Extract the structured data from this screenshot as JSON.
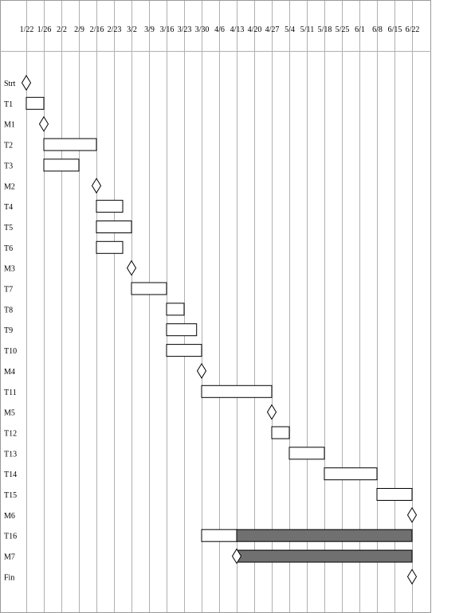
{
  "chart_data": {
    "type": "gantt",
    "title": "",
    "xlabel": "",
    "ylabel": "",
    "x_ticks": [
      "1/22",
      "1/26",
      "2/2",
      "2/9",
      "2/16",
      "2/23",
      "3/2",
      "3/9",
      "3/16",
      "3/23",
      "3/30",
      "4/6",
      "4/13",
      "4/20",
      "4/27",
      "5/4",
      "5/11",
      "5/18",
      "5/25",
      "6/1",
      "6/8",
      "6/15",
      "6/22"
    ],
    "grid": true,
    "rows": [
      {
        "label": "Strt",
        "kind": "milestone",
        "at": "1/22"
      },
      {
        "label": "T1",
        "kind": "task",
        "start": "1/22",
        "end": "1/26"
      },
      {
        "label": "M1",
        "kind": "milestone",
        "at": "1/26"
      },
      {
        "label": "T2",
        "kind": "task",
        "start": "1/26",
        "end": "2/16"
      },
      {
        "label": "T3",
        "kind": "task",
        "start": "1/26",
        "end": "2/9"
      },
      {
        "label": "M2",
        "kind": "milestone",
        "at": "2/16"
      },
      {
        "label": "T4",
        "kind": "task",
        "start": "2/16",
        "end": "2/27"
      },
      {
        "label": "T5",
        "kind": "task",
        "start": "2/16",
        "end": "3/2"
      },
      {
        "label": "T6",
        "kind": "task",
        "start": "2/16",
        "end": "2/27"
      },
      {
        "label": "M3",
        "kind": "milestone",
        "at": "3/2"
      },
      {
        "label": "T7",
        "kind": "task",
        "start": "3/2",
        "end": "3/16"
      },
      {
        "label": "T8",
        "kind": "task",
        "start": "3/16",
        "end": "3/23"
      },
      {
        "label": "T9",
        "kind": "task",
        "start": "3/16",
        "end": "3/28"
      },
      {
        "label": "T10",
        "kind": "task",
        "start": "3/16",
        "end": "3/30"
      },
      {
        "label": "M4",
        "kind": "milestone",
        "at": "3/30"
      },
      {
        "label": "T11",
        "kind": "task",
        "start": "3/30",
        "end": "4/27"
      },
      {
        "label": "M5",
        "kind": "milestone",
        "at": "4/27"
      },
      {
        "label": "T12",
        "kind": "task",
        "start": "4/27",
        "end": "5/4"
      },
      {
        "label": "T13",
        "kind": "task",
        "start": "5/4",
        "end": "5/18"
      },
      {
        "label": "T14",
        "kind": "task",
        "start": "5/18",
        "end": "6/8"
      },
      {
        "label": "T15",
        "kind": "task",
        "start": "6/8",
        "end": "6/22"
      },
      {
        "label": "M6",
        "kind": "milestone",
        "at": "6/22"
      },
      {
        "label": "T16",
        "kind": "task",
        "start": "3/30",
        "end": "4/13",
        "slack_end": "6/22"
      },
      {
        "label": "M7",
        "kind": "milestone",
        "at": "4/13",
        "slack_end": "6/22"
      },
      {
        "label": "Fin",
        "kind": "milestone",
        "at": "6/22"
      }
    ],
    "colors": {
      "task_fill": "#ffffff",
      "task_stroke": "#000000",
      "slack_fill": "#707070",
      "grid": "#b0b0b0",
      "frame": "#9a9a9a"
    }
  }
}
